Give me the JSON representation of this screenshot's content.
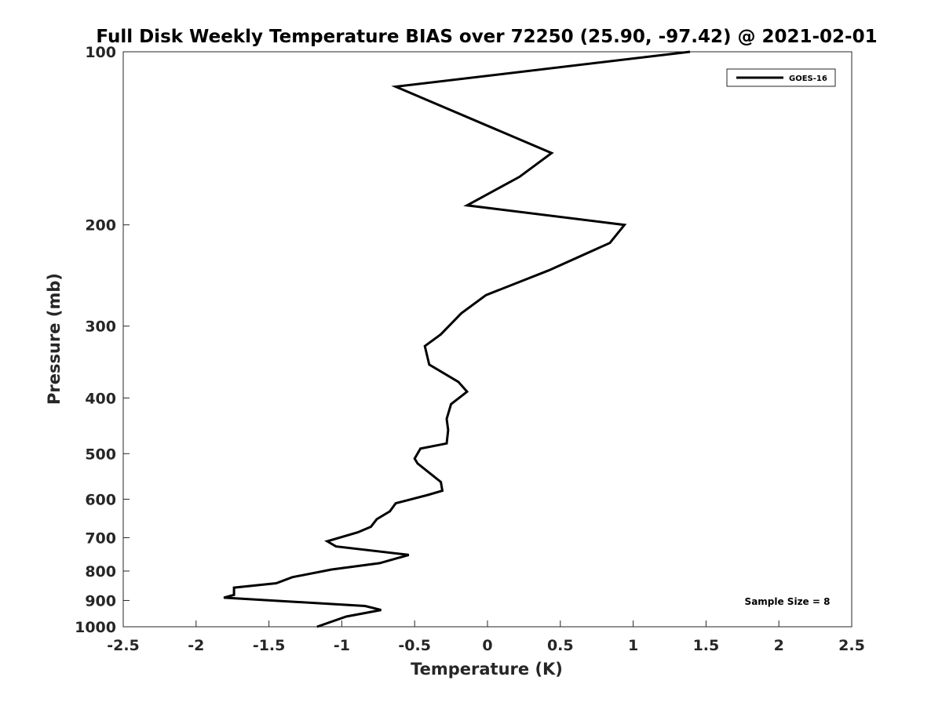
{
  "chart_data": {
    "type": "line",
    "title": "Full Disk Weekly Temperature BIAS over 72250 (25.90, -97.42) @ 2021-02-01",
    "xlabel": "Temperature (K)",
    "ylabel": "Pressure (mb)",
    "xlim": [
      -2.5,
      2.5
    ],
    "ylim": [
      1000,
      100
    ],
    "y_scale": "log",
    "y_reversed": true,
    "grid": false,
    "x_ticks": [
      "-2.5",
      "-2",
      "-1.5",
      "-1",
      "-0.5",
      "0",
      "0.5",
      "1",
      "1.5",
      "2",
      "2.5"
    ],
    "y_ticks": [
      "100",
      "200",
      "300",
      "400",
      "500",
      "600",
      "700",
      "800",
      "900",
      "1000"
    ],
    "legend": {
      "position": "top-right",
      "entries": [
        "GOES-16"
      ]
    },
    "annotation": "Sample Size = 8",
    "series_color": "#000000",
    "series": [
      {
        "name": "GOES-16",
        "x": [
          1.39,
          -0.63,
          0.44,
          0.22,
          -0.14,
          0.94,
          0.84,
          0.42,
          -0.01,
          -0.18,
          -0.32,
          -0.43,
          -0.4,
          -0.2,
          -0.14,
          -0.25,
          -0.28,
          -0.27,
          -0.28,
          -0.46,
          -0.5,
          -0.48,
          -0.32,
          -0.31,
          -0.41,
          -0.63,
          -0.67,
          -0.76,
          -0.8,
          -0.89,
          -1.1,
          -1.04,
          -0.54,
          -0.74,
          -1.07,
          -1.34,
          -1.45,
          -1.74,
          -1.74,
          -1.81,
          -0.84,
          -0.73,
          -0.97,
          -1.17
        ],
        "y": [
          100,
          115,
          150,
          165,
          185,
          200,
          215,
          240,
          265,
          285,
          310,
          325,
          350,
          375,
          390,
          410,
          435,
          455,
          480,
          490,
          510,
          520,
          560,
          580,
          590,
          610,
          630,
          650,
          670,
          685,
          710,
          725,
          750,
          775,
          795,
          820,
          840,
          855,
          880,
          890,
          920,
          935,
          960,
          1000
        ]
      }
    ]
  }
}
